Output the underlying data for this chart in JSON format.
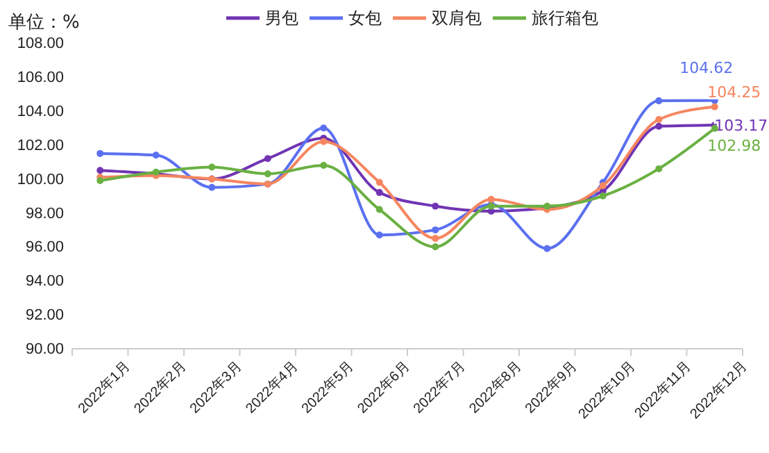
{
  "chart_data": {
    "type": "line",
    "ylabel": "单位：%",
    "categories": [
      "2022年1月",
      "2022年2月",
      "2022年3月",
      "2022年4月",
      "2022年5月",
      "2022年6月",
      "2022年7月",
      "2022年8月",
      "2022年9月",
      "2022年10月",
      "2022年11月",
      "2022年12月"
    ],
    "series": [
      {
        "name": "男包",
        "color": "#7034b4",
        "values": [
          100.5,
          100.3,
          100.0,
          101.2,
          102.4,
          99.2,
          98.4,
          98.1,
          98.3,
          99.3,
          103.1,
          103.17
        ],
        "value_labels": [
          null,
          null,
          null,
          null,
          null,
          null,
          null,
          null,
          null,
          null,
          null,
          "103.17"
        ]
      },
      {
        "name": "女包",
        "color": "#5b70f0",
        "values": [
          101.5,
          101.4,
          99.5,
          99.7,
          103.0,
          96.7,
          97.0,
          98.5,
          95.9,
          99.8,
          104.6,
          104.62
        ],
        "value_labels": [
          null,
          null,
          null,
          null,
          null,
          null,
          null,
          null,
          null,
          null,
          null,
          "104.62"
        ]
      },
      {
        "name": "双肩包",
        "color": "#f5865f",
        "values": [
          100.1,
          100.2,
          100.0,
          99.7,
          102.2,
          99.8,
          96.5,
          98.8,
          98.2,
          99.6,
          103.5,
          104.25
        ],
        "value_labels": [
          null,
          null,
          null,
          null,
          null,
          null,
          null,
          null,
          null,
          null,
          null,
          "104.25"
        ]
      },
      {
        "name": "旅行箱包",
        "color": "#6ab042",
        "values": [
          99.9,
          100.4,
          100.7,
          100.3,
          100.8,
          98.2,
          96.0,
          98.4,
          98.4,
          99.0,
          100.6,
          102.98
        ],
        "value_labels": [
          null,
          null,
          null,
          null,
          null,
          null,
          null,
          null,
          null,
          null,
          null,
          "102.98"
        ]
      }
    ],
    "ylim": [
      90,
      108
    ],
    "yticks": [
      {
        "value": 90,
        "label": "90.00"
      },
      {
        "value": 92,
        "label": "92.00"
      },
      {
        "value": 94,
        "label": "94.00"
      },
      {
        "value": 96,
        "label": "96.00"
      },
      {
        "value": 98,
        "label": "98.00"
      },
      {
        "value": 100,
        "label": "100.00"
      },
      {
        "value": 102,
        "label": "102.00"
      },
      {
        "value": 104,
        "label": "104.00"
      },
      {
        "value": 106,
        "label": "106.00"
      },
      {
        "value": 108,
        "label": "108.00"
      }
    ],
    "grid": false,
    "legend": "top",
    "marker": "circle",
    "line_style": "solid"
  }
}
